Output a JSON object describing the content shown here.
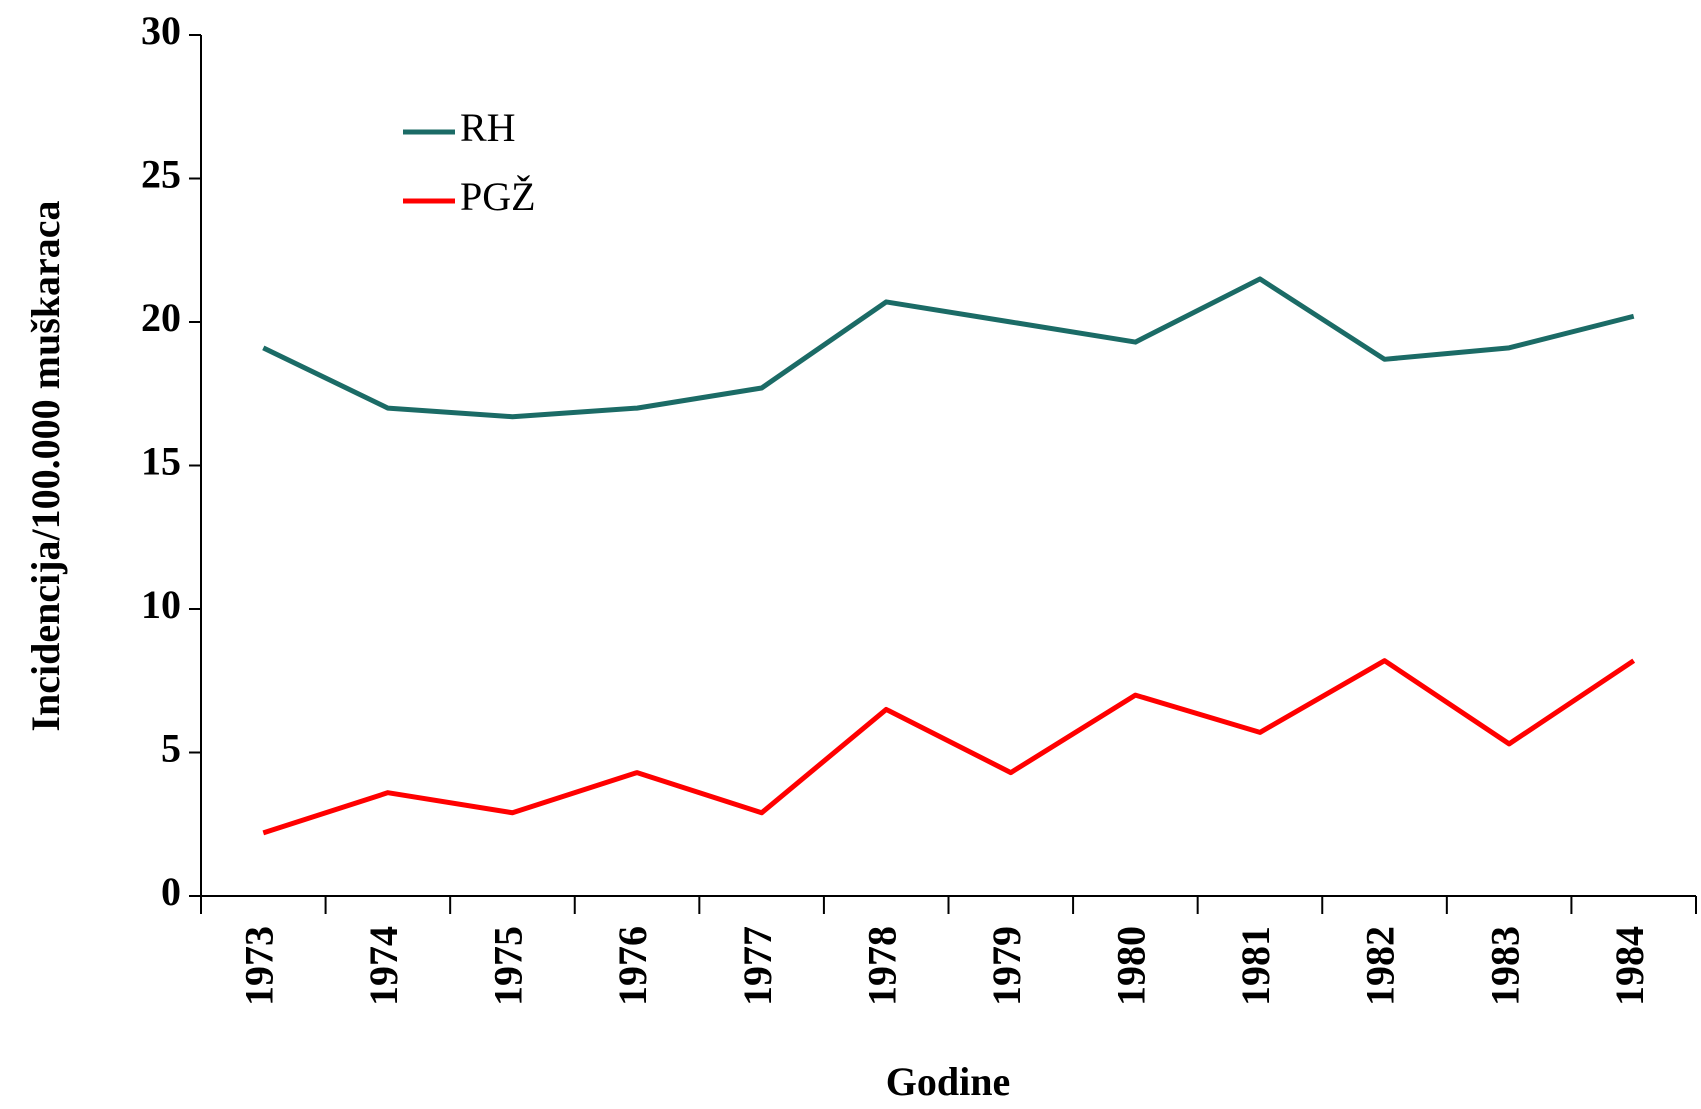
{
  "chart_data": {
    "type": "line",
    "y_label": "Incidencija/100.000 muškaraca",
    "x_label": "Godine",
    "categories": [
      "1973",
      "1974",
      "1975",
      "1976",
      "1977",
      "1978",
      "1979",
      "1980",
      "1981",
      "1982",
      "1983",
      "1984"
    ],
    "series": [
      {
        "name": "RH",
        "color": "#1b6b66",
        "values": [
          19.1,
          17.0,
          16.7,
          17.0,
          17.7,
          20.7,
          20.0,
          19.3,
          21.5,
          18.7,
          19.1,
          20.2
        ]
      },
      {
        "name": "PGŽ",
        "color": "#ff0000",
        "values": [
          2.2,
          3.6,
          2.9,
          4.3,
          2.9,
          6.5,
          4.3,
          7.0,
          5.7,
          8.2,
          5.3,
          8.2
        ]
      }
    ],
    "ylim": [
      0,
      30
    ],
    "yticks": [
      0,
      5,
      10,
      15,
      20,
      25,
      30
    ],
    "legend": "upper left"
  }
}
